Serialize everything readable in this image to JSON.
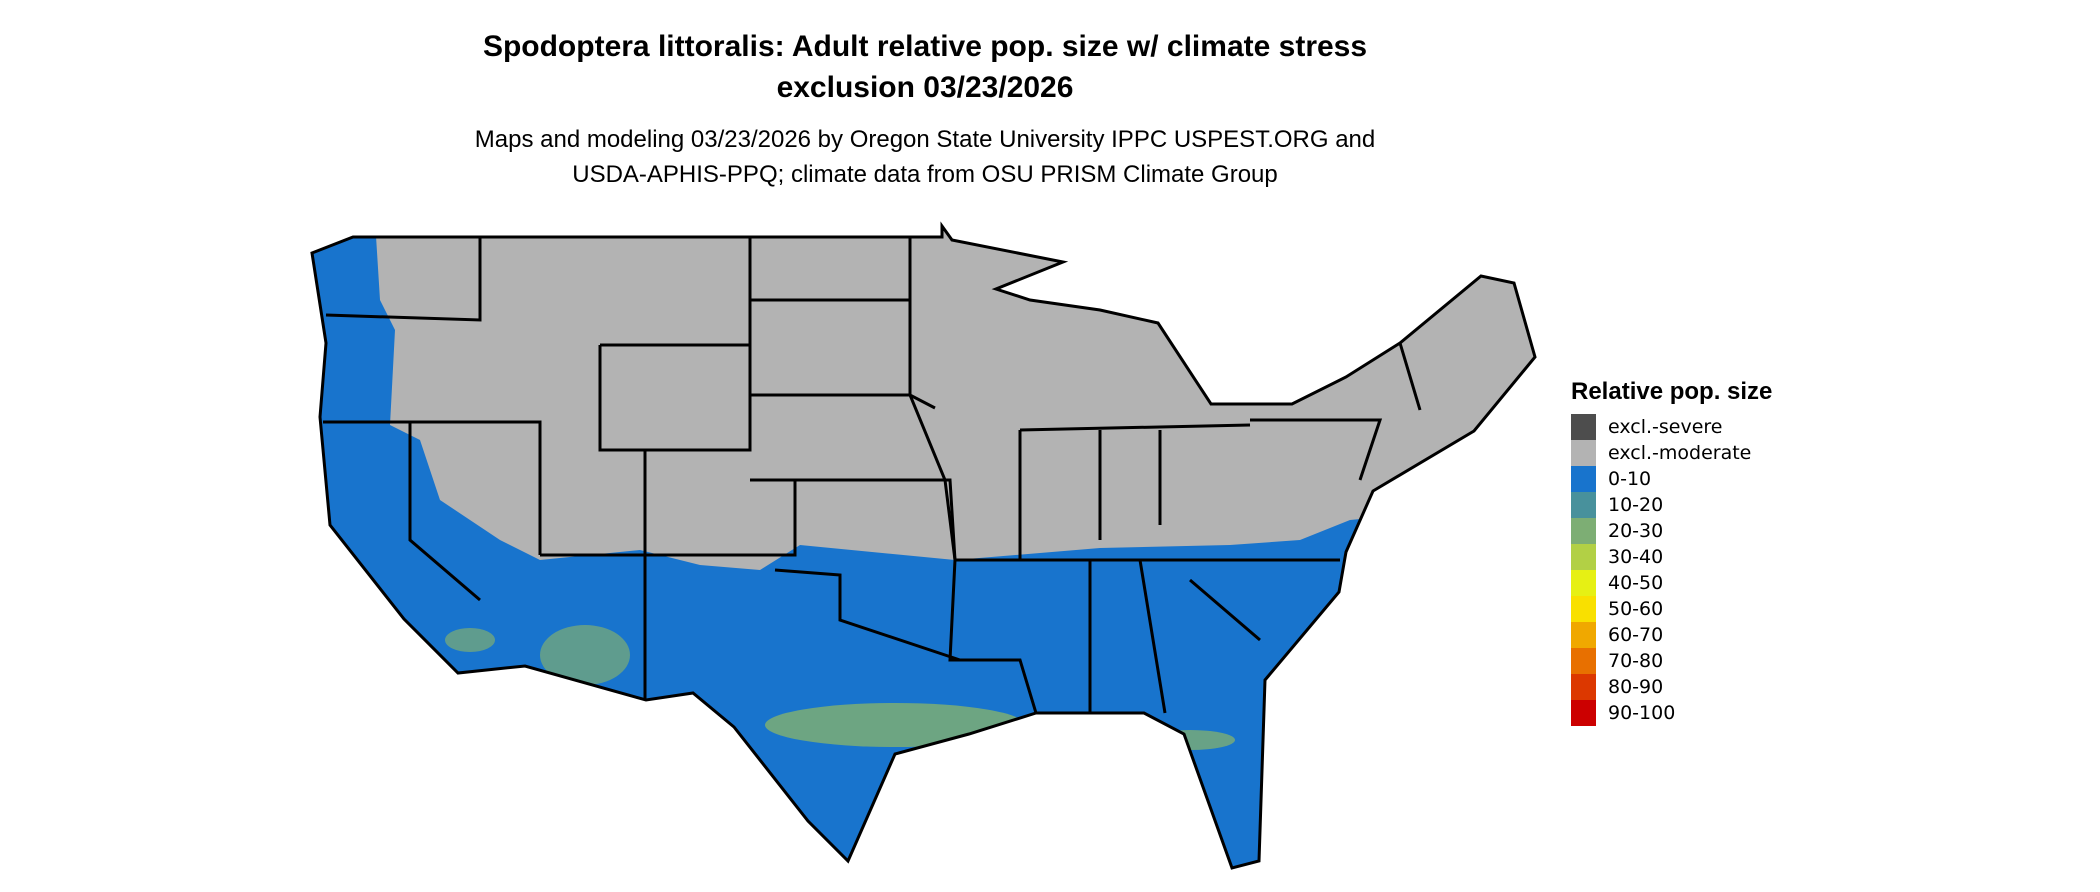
{
  "title_line1": "Spodoptera littoralis: Adult relative pop. size w/ climate stress",
  "title_line2": "exclusion 03/23/2026",
  "subtitle_line1": "Maps and modeling 03/23/2026 by Oregon State University IPPC USPEST.ORG and",
  "subtitle_line2": "USDA-APHIS-PPQ; climate data from OSU PRISM Climate Group",
  "legend": {
    "title": "Relative pop. size",
    "items": [
      {
        "label": "excl.-severe",
        "color": "#4d4d4d"
      },
      {
        "label": "excl.-moderate",
        "color": "#b3b3b3"
      },
      {
        "label": "0-10",
        "color": "#1874cd"
      },
      {
        "label": "10-20",
        "color": "#48919c"
      },
      {
        "label": "20-30",
        "color": "#7dae74"
      },
      {
        "label": "30-40",
        "color": "#b2d045"
      },
      {
        "label": "40-50",
        "color": "#e6f014"
      },
      {
        "label": "50-60",
        "color": "#f9e000"
      },
      {
        "label": "60-70",
        "color": "#f0a800"
      },
      {
        "label": "70-80",
        "color": "#e87000"
      },
      {
        "label": "80-90",
        "color": "#dc3800"
      },
      {
        "label": "90-100",
        "color": "#cc0000"
      }
    ]
  },
  "map": {
    "excluded_color": "#b3b3b3",
    "low_color": "#1874cd",
    "mid_color": "#7dae74",
    "border_color": "#000000"
  }
}
